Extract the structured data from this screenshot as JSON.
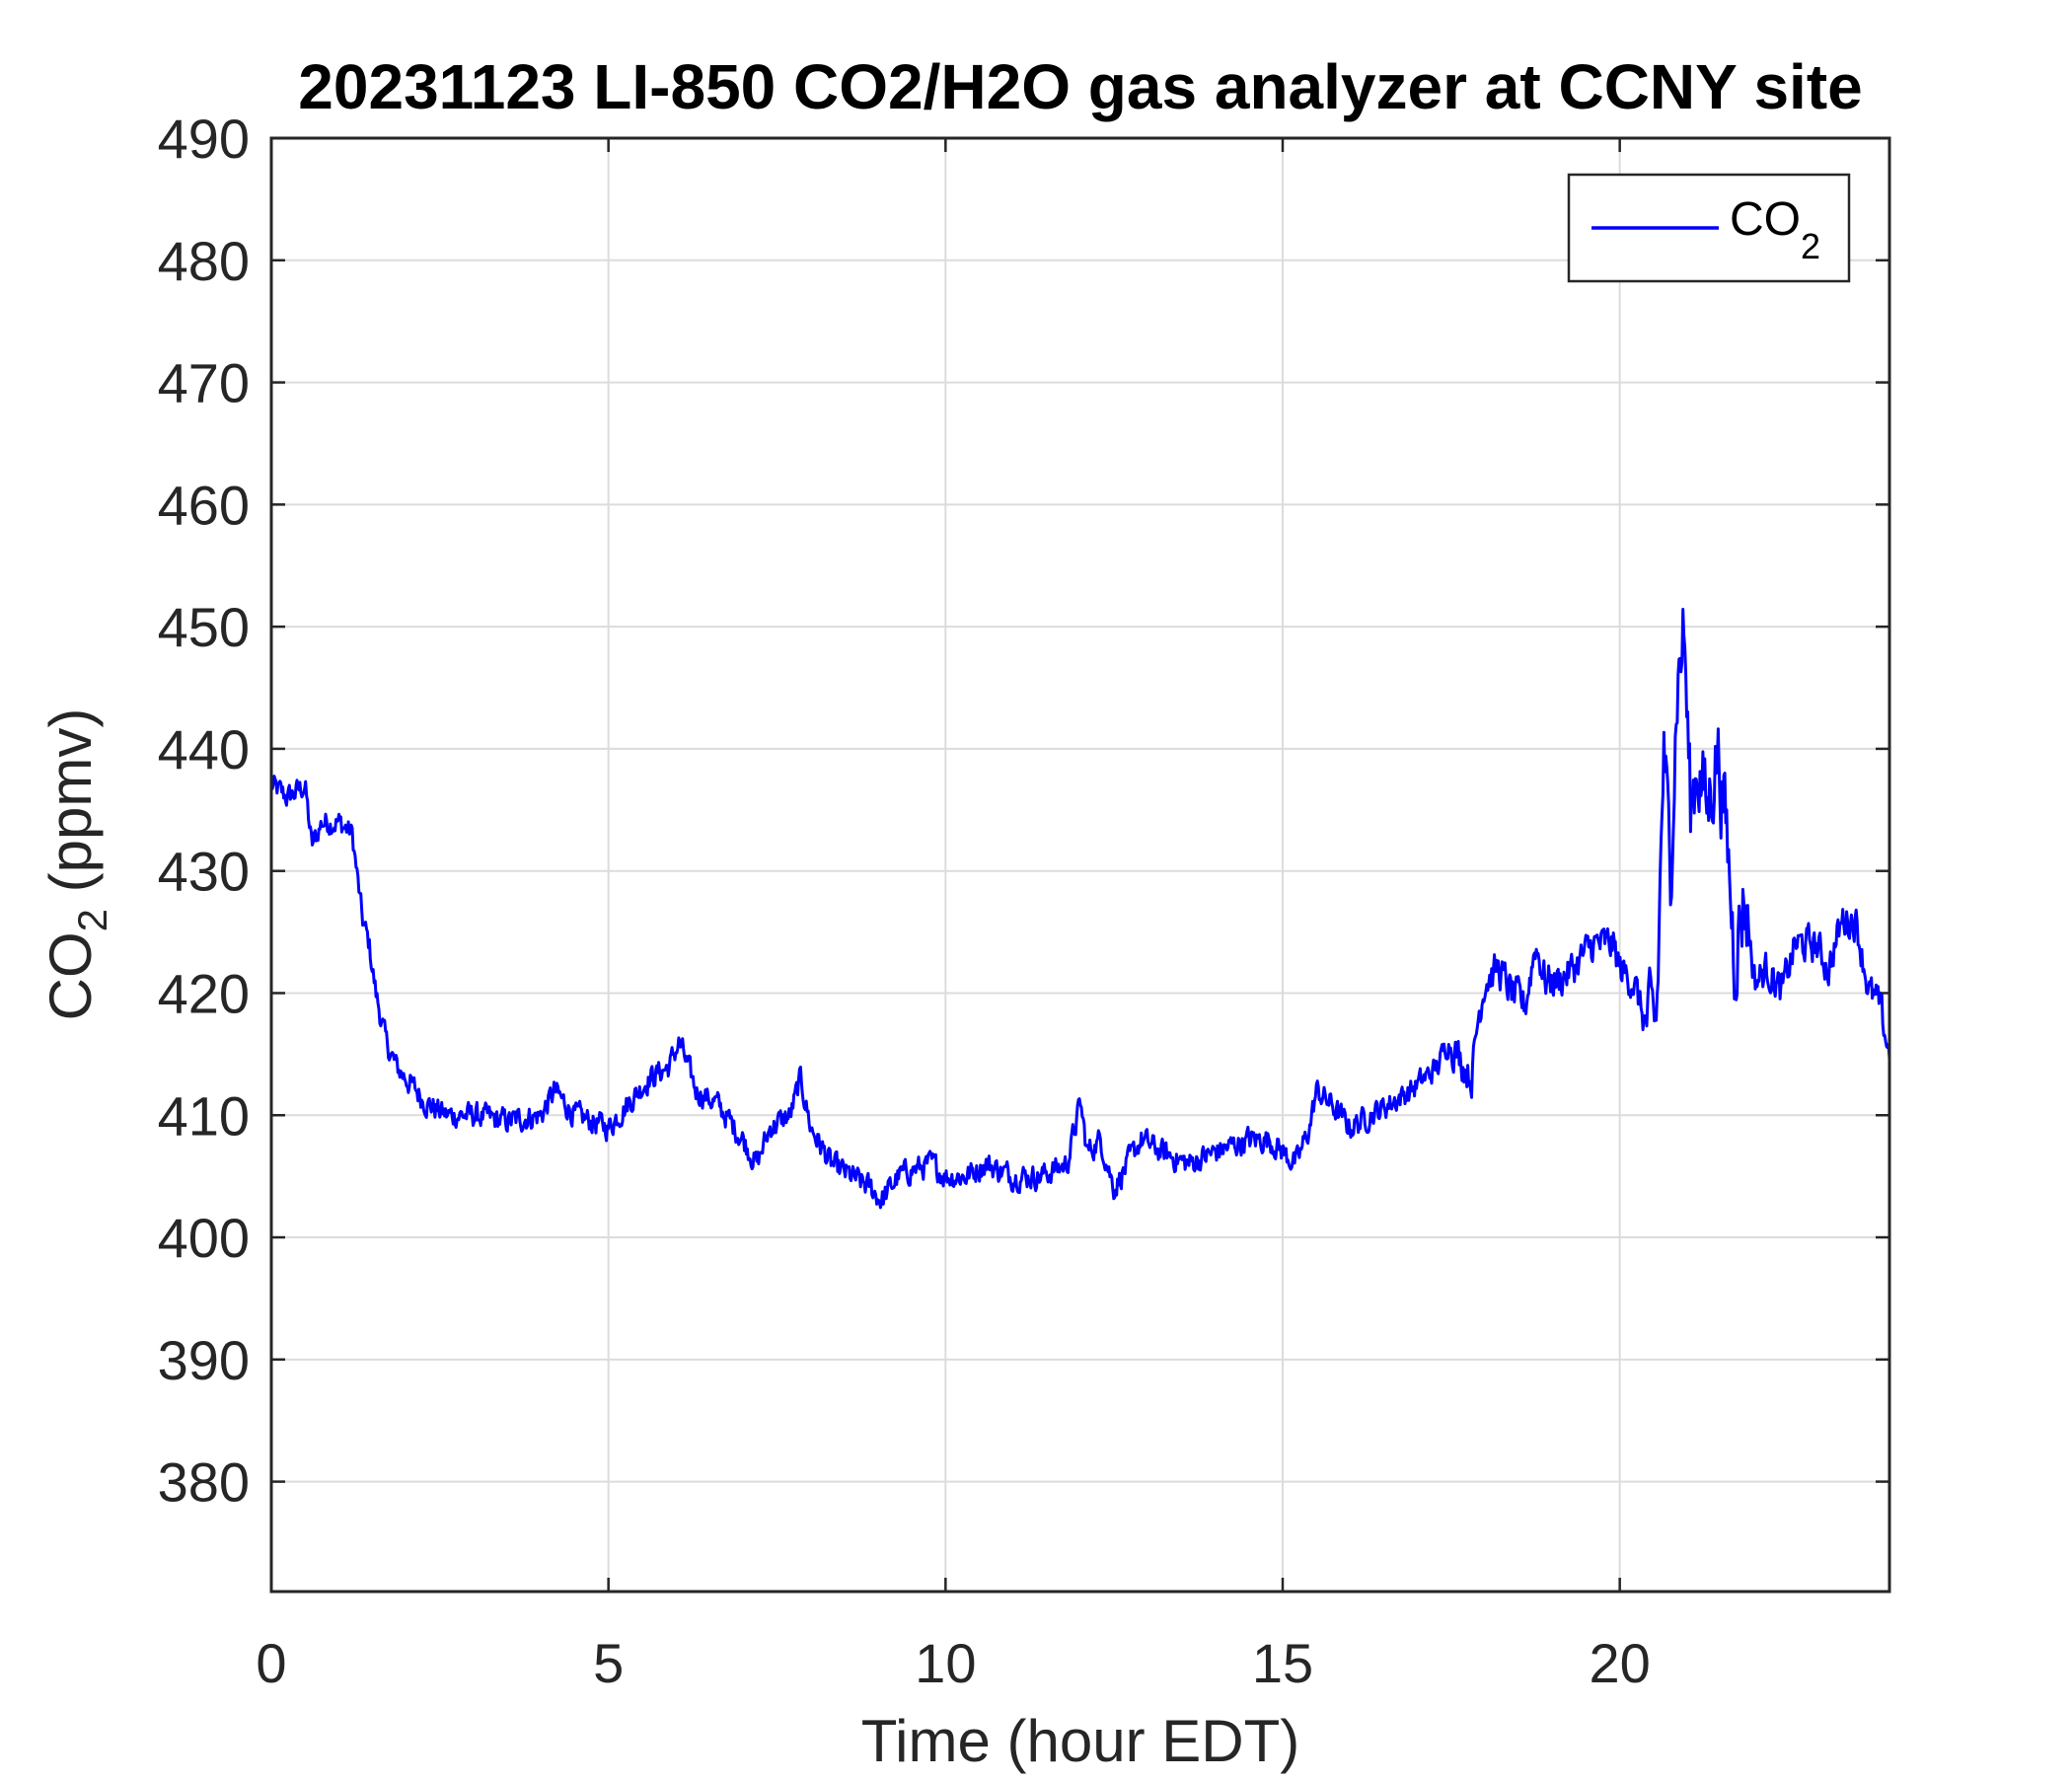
{
  "chart_data": {
    "type": "line",
    "title": "20231123 LI-850 CO2/H2O gas analyzer at CCNY site",
    "xlabel": "Time (hour EDT)",
    "ylabel": {
      "main": "CO",
      "sub": "2",
      "tail": " (ppmv)"
    },
    "xlim": [
      0,
      24
    ],
    "ylim": [
      371,
      490
    ],
    "xticks": [
      0,
      5,
      10,
      15,
      20
    ],
    "xtick_labels": [
      "0",
      "5",
      "10",
      "15",
      "20"
    ],
    "yticks": [
      380,
      390,
      400,
      410,
      420,
      430,
      440,
      450,
      460,
      470,
      480,
      490
    ],
    "ytick_labels": [
      "380",
      "390",
      "400",
      "410",
      "420",
      "430",
      "440",
      "450",
      "460",
      "470",
      "480",
      "490"
    ],
    "grid": true,
    "legend_position": "top-right",
    "series": [
      {
        "name": {
          "main": "CO",
          "sub": "2"
        },
        "color": "#0000ff",
        "x": [
          0,
          0.25,
          0.5,
          0.6,
          0.75,
          1.0,
          1.2,
          1.35,
          1.45,
          1.55,
          1.7,
          1.85,
          2.0,
          2.3,
          2.6,
          3.0,
          3.5,
          4.0,
          4.2,
          4.5,
          5.0,
          5.3,
          5.6,
          5.9,
          6.05,
          6.3,
          6.6,
          7.0,
          7.2,
          7.4,
          7.7,
          7.85,
          8.0,
          8.3,
          8.6,
          8.9,
          9.05,
          9.3,
          9.5,
          9.8,
          10.0,
          10.3,
          10.6,
          11.0,
          11.4,
          11.8,
          12.0,
          12.1,
          12.3,
          12.5,
          12.6,
          12.9,
          13.2,
          13.6,
          14.0,
          14.5,
          14.8,
          15.0,
          15.2,
          15.4,
          15.5,
          15.7,
          16.0,
          16.3,
          16.6,
          16.9,
          17.1,
          17.3,
          17.45,
          17.6,
          17.8,
          17.9,
          18.0,
          18.2,
          18.4,
          18.6,
          18.75,
          18.9,
          19.1,
          19.3,
          19.6,
          19.9,
          20.0,
          20.2,
          20.35,
          20.45,
          20.55,
          20.65,
          20.75,
          20.85,
          20.95,
          21.05,
          21.15,
          21.3,
          21.45,
          21.6,
          21.7,
          21.85,
          22.0,
          22.2,
          22.4,
          22.6,
          22.9,
          23.1,
          23.3,
          23.5,
          23.7,
          23.85,
          24.0
        ],
        "y": [
          437,
          436,
          437,
          432,
          434,
          434,
          433,
          426,
          424,
          420,
          416,
          414,
          413,
          411,
          410,
          410,
          409.5,
          410,
          412,
          410,
          409,
          411,
          413,
          414,
          416,
          412,
          411,
          408,
          406,
          409,
          410,
          413,
          409,
          406,
          405,
          404,
          403,
          405,
          405.5,
          406,
          405,
          405,
          406,
          405,
          405,
          406,
          411,
          407,
          408,
          404,
          405,
          408,
          407,
          406,
          407,
          408,
          408,
          407,
          406,
          409,
          412,
          411,
          409,
          410,
          411,
          412,
          413,
          414,
          416,
          415,
          413,
          418,
          421,
          422,
          420,
          419,
          424,
          421,
          421,
          422,
          424,
          424,
          422,
          421,
          418,
          417,
          418,
          440,
          430,
          445,
          450,
          435,
          439,
          435,
          440,
          432,
          423,
          428,
          421,
          422,
          420,
          424,
          424,
          422,
          426,
          426,
          420,
          419,
          415
        ]
      }
    ]
  }
}
